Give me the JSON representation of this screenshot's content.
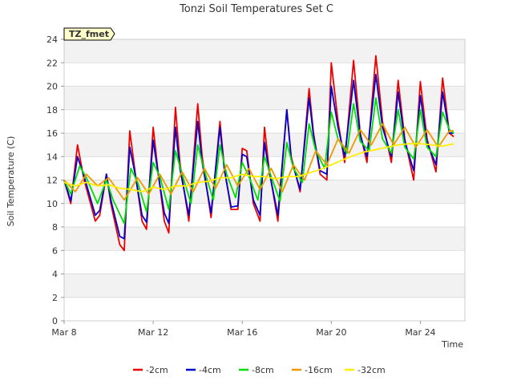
{
  "chart_data": {
    "type": "line",
    "title": "Tonzi Soil Temperatures Set C",
    "badge": "TZ_fmet",
    "xlabel": "Time",
    "ylabel": "Soil Temperature (C)",
    "xlim": [
      0,
      18
    ],
    "ylim": [
      0,
      24
    ],
    "x_unit": "days since Mar 8",
    "x_ticks": [
      {
        "value": 0,
        "label": "Mar 8"
      },
      {
        "value": 4,
        "label": "Mar 12"
      },
      {
        "value": 8,
        "label": "Mar 16"
      },
      {
        "value": 12,
        "label": "Mar 20"
      },
      {
        "value": 16,
        "label": "Mar 24"
      }
    ],
    "y_ticks": [
      0,
      2,
      4,
      6,
      8,
      10,
      12,
      14,
      16,
      18,
      20,
      22,
      24
    ],
    "grid": true,
    "legend_position": "bottom",
    "series": [
      {
        "name": "-2cm",
        "color": "#ee0000",
        "points": [
          [
            0.0,
            12.0
          ],
          [
            0.3,
            10.0
          ],
          [
            0.6,
            15.0
          ],
          [
            0.9,
            12.0
          ],
          [
            1.4,
            8.5
          ],
          [
            1.6,
            9.0
          ],
          [
            1.9,
            12.5
          ],
          [
            2.1,
            10.0
          ],
          [
            2.5,
            6.5
          ],
          [
            2.7,
            6.0
          ],
          [
            2.95,
            16.2
          ],
          [
            3.2,
            12.5
          ],
          [
            3.5,
            8.5
          ],
          [
            3.7,
            7.8
          ],
          [
            4.0,
            16.5
          ],
          [
            4.2,
            13.0
          ],
          [
            4.5,
            8.5
          ],
          [
            4.7,
            7.5
          ],
          [
            5.0,
            18.2
          ],
          [
            5.2,
            13.5
          ],
          [
            5.6,
            8.5
          ],
          [
            6.0,
            18.5
          ],
          [
            6.2,
            14.0
          ],
          [
            6.6,
            8.8
          ],
          [
            7.0,
            17.0
          ],
          [
            7.2,
            13.0
          ],
          [
            7.5,
            9.5
          ],
          [
            7.8,
            9.5
          ],
          [
            8.0,
            14.7
          ],
          [
            8.2,
            14.5
          ],
          [
            8.5,
            10.0
          ],
          [
            8.8,
            8.5
          ],
          [
            9.0,
            16.5
          ],
          [
            9.2,
            13.0
          ],
          [
            9.6,
            8.5
          ],
          [
            10.0,
            18.0
          ],
          [
            10.2,
            14.0
          ],
          [
            10.6,
            11.0
          ],
          [
            11.0,
            19.8
          ],
          [
            11.2,
            16.0
          ],
          [
            11.5,
            12.5
          ],
          [
            11.8,
            12.0
          ],
          [
            12.0,
            22.0
          ],
          [
            12.3,
            17.0
          ],
          [
            12.6,
            13.5
          ],
          [
            13.0,
            22.2
          ],
          [
            13.3,
            16.0
          ],
          [
            13.6,
            13.5
          ],
          [
            14.0,
            22.6
          ],
          [
            14.3,
            17.0
          ],
          [
            14.7,
            13.5
          ],
          [
            15.0,
            20.5
          ],
          [
            15.3,
            15.5
          ],
          [
            15.7,
            12.0
          ],
          [
            16.0,
            20.4
          ],
          [
            16.3,
            15.5
          ],
          [
            16.7,
            12.7
          ],
          [
            17.0,
            20.7
          ],
          [
            17.3,
            16.0
          ],
          [
            17.5,
            15.7
          ]
        ]
      },
      {
        "name": "-4cm",
        "color": "#0000cc",
        "points": [
          [
            0.0,
            12.0
          ],
          [
            0.3,
            10.2
          ],
          [
            0.6,
            14.0
          ],
          [
            0.9,
            12.3
          ],
          [
            1.4,
            9.0
          ],
          [
            1.6,
            9.4
          ],
          [
            1.9,
            12.5
          ],
          [
            2.1,
            10.3
          ],
          [
            2.5,
            7.2
          ],
          [
            2.7,
            7.0
          ],
          [
            2.95,
            14.8
          ],
          [
            3.2,
            12.4
          ],
          [
            3.5,
            9.0
          ],
          [
            3.7,
            8.4
          ],
          [
            4.0,
            15.4
          ],
          [
            4.2,
            12.8
          ],
          [
            4.5,
            9.2
          ],
          [
            4.7,
            8.3
          ],
          [
            5.0,
            16.5
          ],
          [
            5.2,
            13.0
          ],
          [
            5.6,
            9.0
          ],
          [
            6.0,
            17.0
          ],
          [
            6.2,
            13.5
          ],
          [
            6.6,
            9.2
          ],
          [
            7.0,
            16.5
          ],
          [
            7.2,
            12.8
          ],
          [
            7.5,
            9.7
          ],
          [
            7.8,
            9.8
          ],
          [
            8.0,
            14.2
          ],
          [
            8.2,
            14.0
          ],
          [
            8.5,
            10.3
          ],
          [
            8.8,
            9.0
          ],
          [
            9.0,
            15.2
          ],
          [
            9.2,
            12.8
          ],
          [
            9.6,
            9.0
          ],
          [
            10.0,
            18.0
          ],
          [
            10.2,
            13.8
          ],
          [
            10.6,
            11.2
          ],
          [
            11.0,
            19.0
          ],
          [
            11.2,
            15.8
          ],
          [
            11.5,
            12.8
          ],
          [
            11.8,
            12.5
          ],
          [
            12.0,
            20.0
          ],
          [
            12.3,
            16.5
          ],
          [
            12.6,
            14.0
          ],
          [
            13.0,
            20.5
          ],
          [
            13.3,
            15.8
          ],
          [
            13.6,
            14.0
          ],
          [
            14.0,
            21.0
          ],
          [
            14.3,
            16.5
          ],
          [
            14.7,
            14.0
          ],
          [
            15.0,
            19.5
          ],
          [
            15.3,
            15.3
          ],
          [
            15.7,
            12.8
          ],
          [
            16.0,
            19.2
          ],
          [
            16.3,
            15.2
          ],
          [
            16.7,
            13.3
          ],
          [
            17.0,
            19.5
          ],
          [
            17.3,
            16.0
          ],
          [
            17.5,
            16.0
          ]
        ]
      },
      {
        "name": "-8cm",
        "color": "#00dd00",
        "points": [
          [
            0.0,
            12.0
          ],
          [
            0.3,
            10.8
          ],
          [
            0.7,
            13.2
          ],
          [
            1.0,
            12.2
          ],
          [
            1.5,
            10.0
          ],
          [
            1.9,
            12.0
          ],
          [
            2.2,
            10.3
          ],
          [
            2.7,
            8.3
          ],
          [
            3.0,
            13.0
          ],
          [
            3.3,
            11.8
          ],
          [
            3.7,
            9.3
          ],
          [
            4.0,
            13.5
          ],
          [
            4.3,
            12.3
          ],
          [
            4.7,
            9.5
          ],
          [
            5.0,
            14.5
          ],
          [
            5.3,
            12.5
          ],
          [
            5.7,
            10.0
          ],
          [
            6.0,
            15.0
          ],
          [
            6.3,
            12.8
          ],
          [
            6.7,
            10.3
          ],
          [
            7.0,
            15.0
          ],
          [
            7.3,
            12.5
          ],
          [
            7.7,
            10.5
          ],
          [
            8.0,
            13.5
          ],
          [
            8.3,
            12.3
          ],
          [
            8.7,
            10.3
          ],
          [
            9.0,
            14.0
          ],
          [
            9.3,
            12.3
          ],
          [
            9.7,
            10.2
          ],
          [
            10.0,
            15.2
          ],
          [
            10.3,
            13.0
          ],
          [
            10.7,
            11.8
          ],
          [
            11.0,
            16.8
          ],
          [
            11.3,
            14.5
          ],
          [
            11.7,
            13.0
          ],
          [
            12.0,
            17.8
          ],
          [
            12.3,
            15.5
          ],
          [
            12.7,
            14.3
          ],
          [
            13.0,
            18.5
          ],
          [
            13.3,
            15.3
          ],
          [
            13.7,
            14.5
          ],
          [
            14.0,
            19.0
          ],
          [
            14.3,
            15.5
          ],
          [
            14.7,
            14.3
          ],
          [
            15.0,
            18.0
          ],
          [
            15.3,
            14.8
          ],
          [
            15.7,
            13.8
          ],
          [
            16.0,
            18.0
          ],
          [
            16.3,
            14.8
          ],
          [
            16.7,
            14.0
          ],
          [
            17.0,
            17.8
          ],
          [
            17.3,
            16.3
          ],
          [
            17.5,
            16.0
          ]
        ]
      },
      {
        "name": "-16cm",
        "color": "#ee9900",
        "points": [
          [
            0.0,
            12.0
          ],
          [
            0.5,
            11.0
          ],
          [
            1.0,
            12.5
          ],
          [
            1.5,
            11.5
          ],
          [
            2.0,
            12.2
          ],
          [
            2.7,
            10.3
          ],
          [
            3.3,
            12.2
          ],
          [
            3.8,
            10.8
          ],
          [
            4.3,
            12.5
          ],
          [
            4.8,
            10.8
          ],
          [
            5.3,
            12.7
          ],
          [
            5.8,
            11.0
          ],
          [
            6.3,
            13.0
          ],
          [
            6.8,
            11.3
          ],
          [
            7.3,
            13.3
          ],
          [
            7.8,
            11.5
          ],
          [
            8.3,
            13.0
          ],
          [
            8.8,
            11.2
          ],
          [
            9.3,
            13.0
          ],
          [
            9.8,
            11.0
          ],
          [
            10.3,
            13.3
          ],
          [
            10.8,
            12.0
          ],
          [
            11.3,
            14.5
          ],
          [
            11.8,
            13.3
          ],
          [
            12.3,
            15.5
          ],
          [
            12.8,
            14.3
          ],
          [
            13.3,
            16.3
          ],
          [
            13.8,
            15.0
          ],
          [
            14.3,
            16.8
          ],
          [
            14.8,
            15.0
          ],
          [
            15.3,
            16.5
          ],
          [
            15.8,
            14.8
          ],
          [
            16.3,
            16.3
          ],
          [
            16.8,
            14.8
          ],
          [
            17.3,
            16.2
          ],
          [
            17.5,
            16.2
          ]
        ]
      },
      {
        "name": "-32cm",
        "color": "#ffee00",
        "points": [
          [
            0.0,
            11.8
          ],
          [
            0.5,
            11.5
          ],
          [
            1.0,
            11.8
          ],
          [
            1.5,
            11.5
          ],
          [
            2.0,
            11.6
          ],
          [
            2.5,
            11.3
          ],
          [
            3.0,
            11.2
          ],
          [
            3.5,
            11.0
          ],
          [
            4.0,
            11.4
          ],
          [
            4.5,
            11.2
          ],
          [
            5.0,
            11.5
          ],
          [
            5.5,
            11.5
          ],
          [
            6.0,
            11.8
          ],
          [
            6.5,
            11.9
          ],
          [
            7.0,
            12.2
          ],
          [
            7.5,
            12.2
          ],
          [
            8.0,
            12.5
          ],
          [
            8.5,
            12.3
          ],
          [
            9.0,
            12.3
          ],
          [
            9.5,
            12.1
          ],
          [
            10.0,
            12.3
          ],
          [
            10.5,
            12.3
          ],
          [
            11.0,
            12.6
          ],
          [
            11.5,
            12.9
          ],
          [
            12.0,
            13.3
          ],
          [
            12.5,
            13.7
          ],
          [
            13.0,
            14.1
          ],
          [
            13.5,
            14.4
          ],
          [
            14.0,
            14.6
          ],
          [
            14.5,
            14.8
          ],
          [
            15.0,
            15.0
          ],
          [
            15.5,
            15.1
          ],
          [
            16.0,
            15.1
          ],
          [
            16.5,
            15.0
          ],
          [
            17.0,
            14.9
          ],
          [
            17.5,
            15.1
          ]
        ]
      }
    ]
  }
}
